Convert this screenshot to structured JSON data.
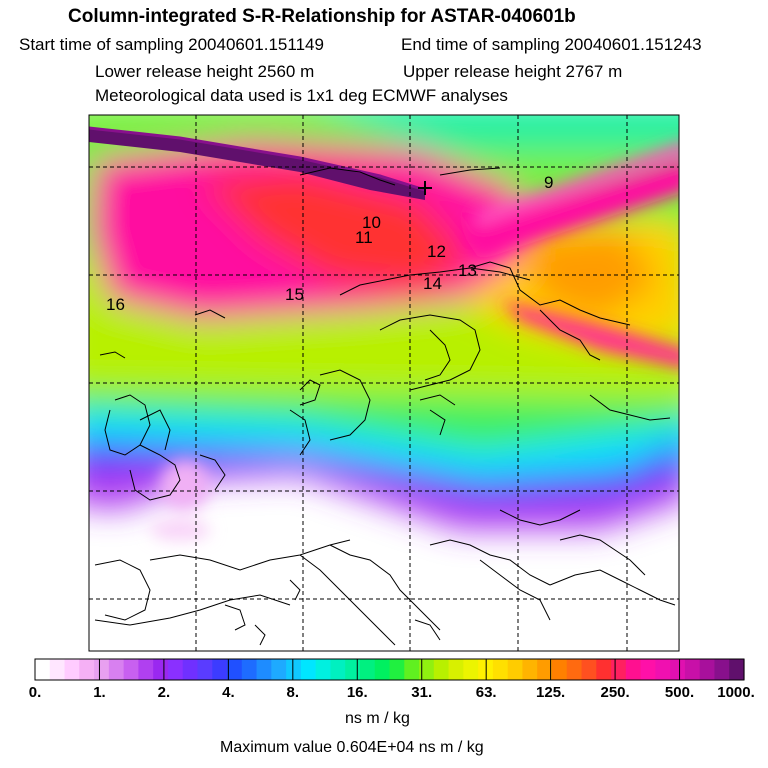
{
  "header": {
    "title": "Column-integrated S-R-Relationship for ASTAR-040601b",
    "start_time": "Start time of sampling 20040601.151149",
    "end_time": "End time of sampling 20040601.151243",
    "lower_release": "Lower release height 2560 m",
    "upper_release": "Upper release height 2767 m",
    "met_data": "Meteorological data used is 1x1 deg ECMWF analyses"
  },
  "map": {
    "contour_labels": [
      "9",
      "10",
      "11",
      "12",
      "13",
      "14",
      "15",
      "16"
    ]
  },
  "colorbar": {
    "tick_labels": [
      "0.",
      "1.",
      "2.",
      "4.",
      "8.",
      "16.",
      "31.",
      "63.",
      "125.",
      "250.",
      "500.",
      "1000."
    ],
    "colors": [
      "#ffffff",
      "#ffe6ff",
      "#ffccff",
      "#f5b0f5",
      "#e8a0f0",
      "#d880f0",
      "#c860f0",
      "#b040f0",
      "#9a28f0",
      "#8a30ff",
      "#7030ff",
      "#5a3cff",
      "#3c3cff",
      "#2050ff",
      "#1e6cff",
      "#1e8cff",
      "#1eaaff",
      "#10c8ff",
      "#00e6ff",
      "#00f0e0",
      "#00f0c0",
      "#00f0a0",
      "#00f080",
      "#00f060",
      "#20f040",
      "#60f020",
      "#90f010",
      "#b8f000",
      "#d8f000",
      "#ecf400",
      "#fff000",
      "#ffe000",
      "#ffcc00",
      "#ffb400",
      "#ff9c00",
      "#ff8000",
      "#ff6a10",
      "#ff5020",
      "#ff3030",
      "#ff2060",
      "#ff1090",
      "#ff10a8",
      "#f010b0",
      "#e010b0",
      "#c810a8",
      "#a8109c",
      "#88108c",
      "#60106c"
    ],
    "unit_label": "ns m / kg"
  },
  "footer": {
    "max_value": "Maximum value  0.604E+04 ns m / kg"
  }
}
